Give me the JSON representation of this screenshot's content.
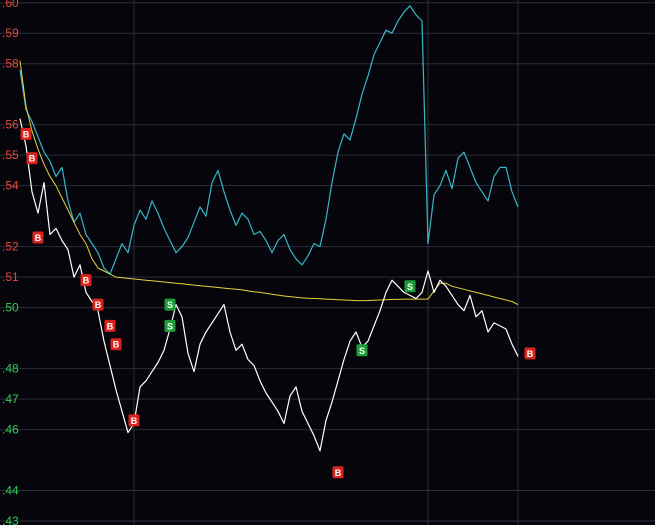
{
  "chart_data": {
    "type": "line",
    "title": "",
    "xlabel": "",
    "ylabel": "",
    "ylim": [
      0.4287,
      0.6009
    ],
    "y_ticks": [
      {
        "value": 0.6,
        "label": ".60",
        "color": "#e84a3a"
      },
      {
        "value": 0.59,
        "label": ".59",
        "color": "#e84a3a"
      },
      {
        "value": 0.58,
        "label": ".58",
        "color": "#e84a3a"
      },
      {
        "value": 0.56,
        "label": ".56",
        "color": "#e84a3a"
      },
      {
        "value": 0.55,
        "label": ".55",
        "color": "#e84a3a"
      },
      {
        "value": 0.54,
        "label": ".54",
        "color": "#e84a3a"
      },
      {
        "value": 0.52,
        "label": ".52",
        "color": "#e84a3a"
      },
      {
        "value": 0.51,
        "label": ".51",
        "color": "#e84a3a"
      },
      {
        "value": 0.5,
        "label": ".50",
        "color": "#33cc55"
      },
      {
        "value": 0.48,
        "label": ".48",
        "color": "#33cc55"
      },
      {
        "value": 0.47,
        "label": ".47",
        "color": "#33cc55"
      },
      {
        "value": 0.46,
        "label": ".46",
        "color": "#33cc55"
      },
      {
        "value": 0.44,
        "label": ".44",
        "color": "#33cc55"
      },
      {
        "value": 0.43,
        "label": ".43",
        "color": "#33cc55"
      }
    ],
    "x_range": [
      0,
      100
    ],
    "vertical_gridlines": [
      19,
      68,
      83
    ],
    "grid": true,
    "colors": {
      "background": "#05050b",
      "grid": "#2a2e3a",
      "price": "#ffffff",
      "average": "#e6d23a",
      "compare": "#38b6c8",
      "buy_marker": "#d8241c",
      "sell_marker": "#1e9e3a"
    },
    "series": [
      {
        "key": "compare",
        "x": [
          0,
          1,
          2,
          3,
          4,
          5,
          6,
          7,
          8,
          9,
          10,
          11,
          12,
          13,
          14,
          15,
          16,
          17,
          18,
          19,
          20,
          21,
          22,
          23,
          24,
          25,
          26,
          27,
          28,
          29,
          30,
          31,
          32,
          33,
          34,
          35,
          36,
          37,
          38,
          39,
          40,
          41,
          42,
          43,
          44,
          45,
          46,
          47,
          48,
          49,
          50,
          51,
          52,
          53,
          54,
          55,
          56,
          57,
          58,
          59,
          60,
          61,
          62,
          63,
          64,
          65,
          66,
          67,
          68,
          69,
          70,
          71,
          72,
          73,
          74,
          75,
          76,
          77,
          78,
          79,
          80,
          81,
          82,
          83
        ],
        "values": [
          0.578,
          0.565,
          0.561,
          0.556,
          0.551,
          0.548,
          0.543,
          0.546,
          0.535,
          0.528,
          0.531,
          0.524,
          0.521,
          0.518,
          0.513,
          0.511,
          0.516,
          0.521,
          0.518,
          0.527,
          0.532,
          0.529,
          0.535,
          0.531,
          0.526,
          0.522,
          0.518,
          0.52,
          0.523,
          0.528,
          0.533,
          0.53,
          0.541,
          0.545,
          0.538,
          0.532,
          0.527,
          0.531,
          0.529,
          0.524,
          0.525,
          0.522,
          0.518,
          0.522,
          0.524,
          0.519,
          0.516,
          0.514,
          0.517,
          0.521,
          0.52,
          0.529,
          0.541,
          0.551,
          0.557,
          0.555,
          0.562,
          0.57,
          0.576,
          0.583,
          0.587,
          0.591,
          0.59,
          0.594,
          0.597,
          0.599,
          0.596,
          0.594,
          0.521,
          0.537,
          0.54,
          0.545,
          0.539,
          0.549,
          0.551,
          0.546,
          0.541,
          0.538,
          0.535,
          0.543,
          0.546,
          0.546,
          0.538,
          0.533
        ]
      },
      {
        "key": "price",
        "x": [
          0,
          1,
          2,
          3,
          4,
          5,
          6,
          7,
          8,
          9,
          10,
          11,
          12,
          13,
          14,
          15,
          16,
          17,
          18,
          19,
          20,
          21,
          22,
          23,
          24,
          25,
          26,
          27,
          28,
          29,
          30,
          31,
          32,
          33,
          34,
          35,
          36,
          37,
          38,
          39,
          40,
          41,
          42,
          43,
          44,
          45,
          46,
          47,
          48,
          49,
          50,
          51,
          52,
          53,
          54,
          55,
          56,
          57,
          58,
          59,
          60,
          61,
          62,
          63,
          64,
          65,
          66,
          67,
          68,
          69,
          70,
          71,
          72,
          73,
          74,
          75,
          76,
          77,
          78,
          79,
          80,
          81,
          82,
          83
        ],
        "values": [
          0.562,
          0.553,
          0.538,
          0.531,
          0.541,
          0.524,
          0.526,
          0.522,
          0.519,
          0.51,
          0.514,
          0.505,
          0.502,
          0.499,
          0.489,
          0.481,
          0.473,
          0.466,
          0.459,
          0.462,
          0.474,
          0.476,
          0.479,
          0.482,
          0.486,
          0.493,
          0.501,
          0.497,
          0.485,
          0.479,
          0.488,
          0.492,
          0.495,
          0.498,
          0.501,
          0.492,
          0.486,
          0.488,
          0.483,
          0.481,
          0.476,
          0.472,
          0.469,
          0.466,
          0.462,
          0.471,
          0.474,
          0.466,
          0.462,
          0.458,
          0.453,
          0.463,
          0.469,
          0.476,
          0.483,
          0.489,
          0.492,
          0.487,
          0.489,
          0.494,
          0.499,
          0.505,
          0.509,
          0.507,
          0.505,
          0.504,
          0.503,
          0.505,
          0.512,
          0.505,
          0.509,
          0.507,
          0.504,
          0.501,
          0.499,
          0.504,
          0.497,
          0.499,
          0.492,
          0.495,
          0.494,
          0.493,
          0.488,
          0.484
        ]
      },
      {
        "key": "average",
        "x": [
          0,
          1,
          2,
          3,
          4,
          5,
          6,
          7,
          8,
          9,
          10,
          11,
          12,
          13,
          14,
          15,
          16,
          17,
          18,
          19,
          20,
          21,
          22,
          23,
          24,
          25,
          26,
          27,
          28,
          29,
          30,
          31,
          32,
          33,
          34,
          35,
          36,
          37,
          38,
          39,
          40,
          41,
          42,
          43,
          44,
          45,
          46,
          47,
          48,
          49,
          50,
          51,
          52,
          53,
          54,
          55,
          56,
          57,
          58,
          59,
          60,
          61,
          62,
          63,
          64,
          65,
          66,
          67,
          68,
          69,
          70,
          71,
          72,
          73,
          74,
          75,
          76,
          77,
          78,
          79,
          80,
          81,
          82,
          83
        ],
        "values": [
          0.581,
          0.566,
          0.558,
          0.552,
          0.547,
          0.543,
          0.54,
          0.536,
          0.532,
          0.528,
          0.524,
          0.521,
          0.516,
          0.513,
          0.512,
          0.511,
          0.51,
          0.5098,
          0.5096,
          0.5094,
          0.5092,
          0.509,
          0.5088,
          0.5086,
          0.5084,
          0.5082,
          0.508,
          0.5078,
          0.5076,
          0.5074,
          0.5072,
          0.507,
          0.5068,
          0.5066,
          0.5064,
          0.5062,
          0.506,
          0.5058,
          0.5055,
          0.5052,
          0.505,
          0.5047,
          0.5044,
          0.5041,
          0.5038,
          0.5036,
          0.5034,
          0.5032,
          0.5031,
          0.503,
          0.5029,
          0.5028,
          0.5027,
          0.5026,
          0.5025,
          0.5024,
          0.5023,
          0.5023,
          0.5023,
          0.5024,
          0.5025,
          0.5026,
          0.5027,
          0.5027,
          0.5028,
          0.5028,
          0.5028,
          0.5028,
          0.5028,
          0.5055,
          0.508,
          0.508,
          0.507,
          0.5065,
          0.506,
          0.5055,
          0.505,
          0.5045,
          0.504,
          0.5035,
          0.503,
          0.5025,
          0.502,
          0.501
        ]
      }
    ],
    "markers": [
      {
        "label": "B",
        "kind": "buy",
        "x": 1,
        "y": 0.557
      },
      {
        "label": "B",
        "kind": "buy",
        "x": 2,
        "y": 0.549
      },
      {
        "label": "B",
        "kind": "buy",
        "x": 3,
        "y": 0.523
      },
      {
        "label": "B",
        "kind": "buy",
        "x": 11,
        "y": 0.509
      },
      {
        "label": "B",
        "kind": "buy",
        "x": 13,
        "y": 0.501
      },
      {
        "label": "B",
        "kind": "buy",
        "x": 15,
        "y": 0.494
      },
      {
        "label": "B",
        "kind": "buy",
        "x": 16,
        "y": 0.488
      },
      {
        "label": "B",
        "kind": "buy",
        "x": 19,
        "y": 0.463
      },
      {
        "label": "S",
        "kind": "sell",
        "x": 25,
        "y": 0.501
      },
      {
        "label": "S",
        "kind": "sell",
        "x": 25,
        "y": 0.494
      },
      {
        "label": "B",
        "kind": "buy",
        "x": 53,
        "y": 0.446
      },
      {
        "label": "S",
        "kind": "sell",
        "x": 57,
        "y": 0.486
      },
      {
        "label": "S",
        "kind": "sell",
        "x": 65,
        "y": 0.507
      },
      {
        "label": "B",
        "kind": "buy",
        "x": 85,
        "y": 0.485
      }
    ]
  }
}
